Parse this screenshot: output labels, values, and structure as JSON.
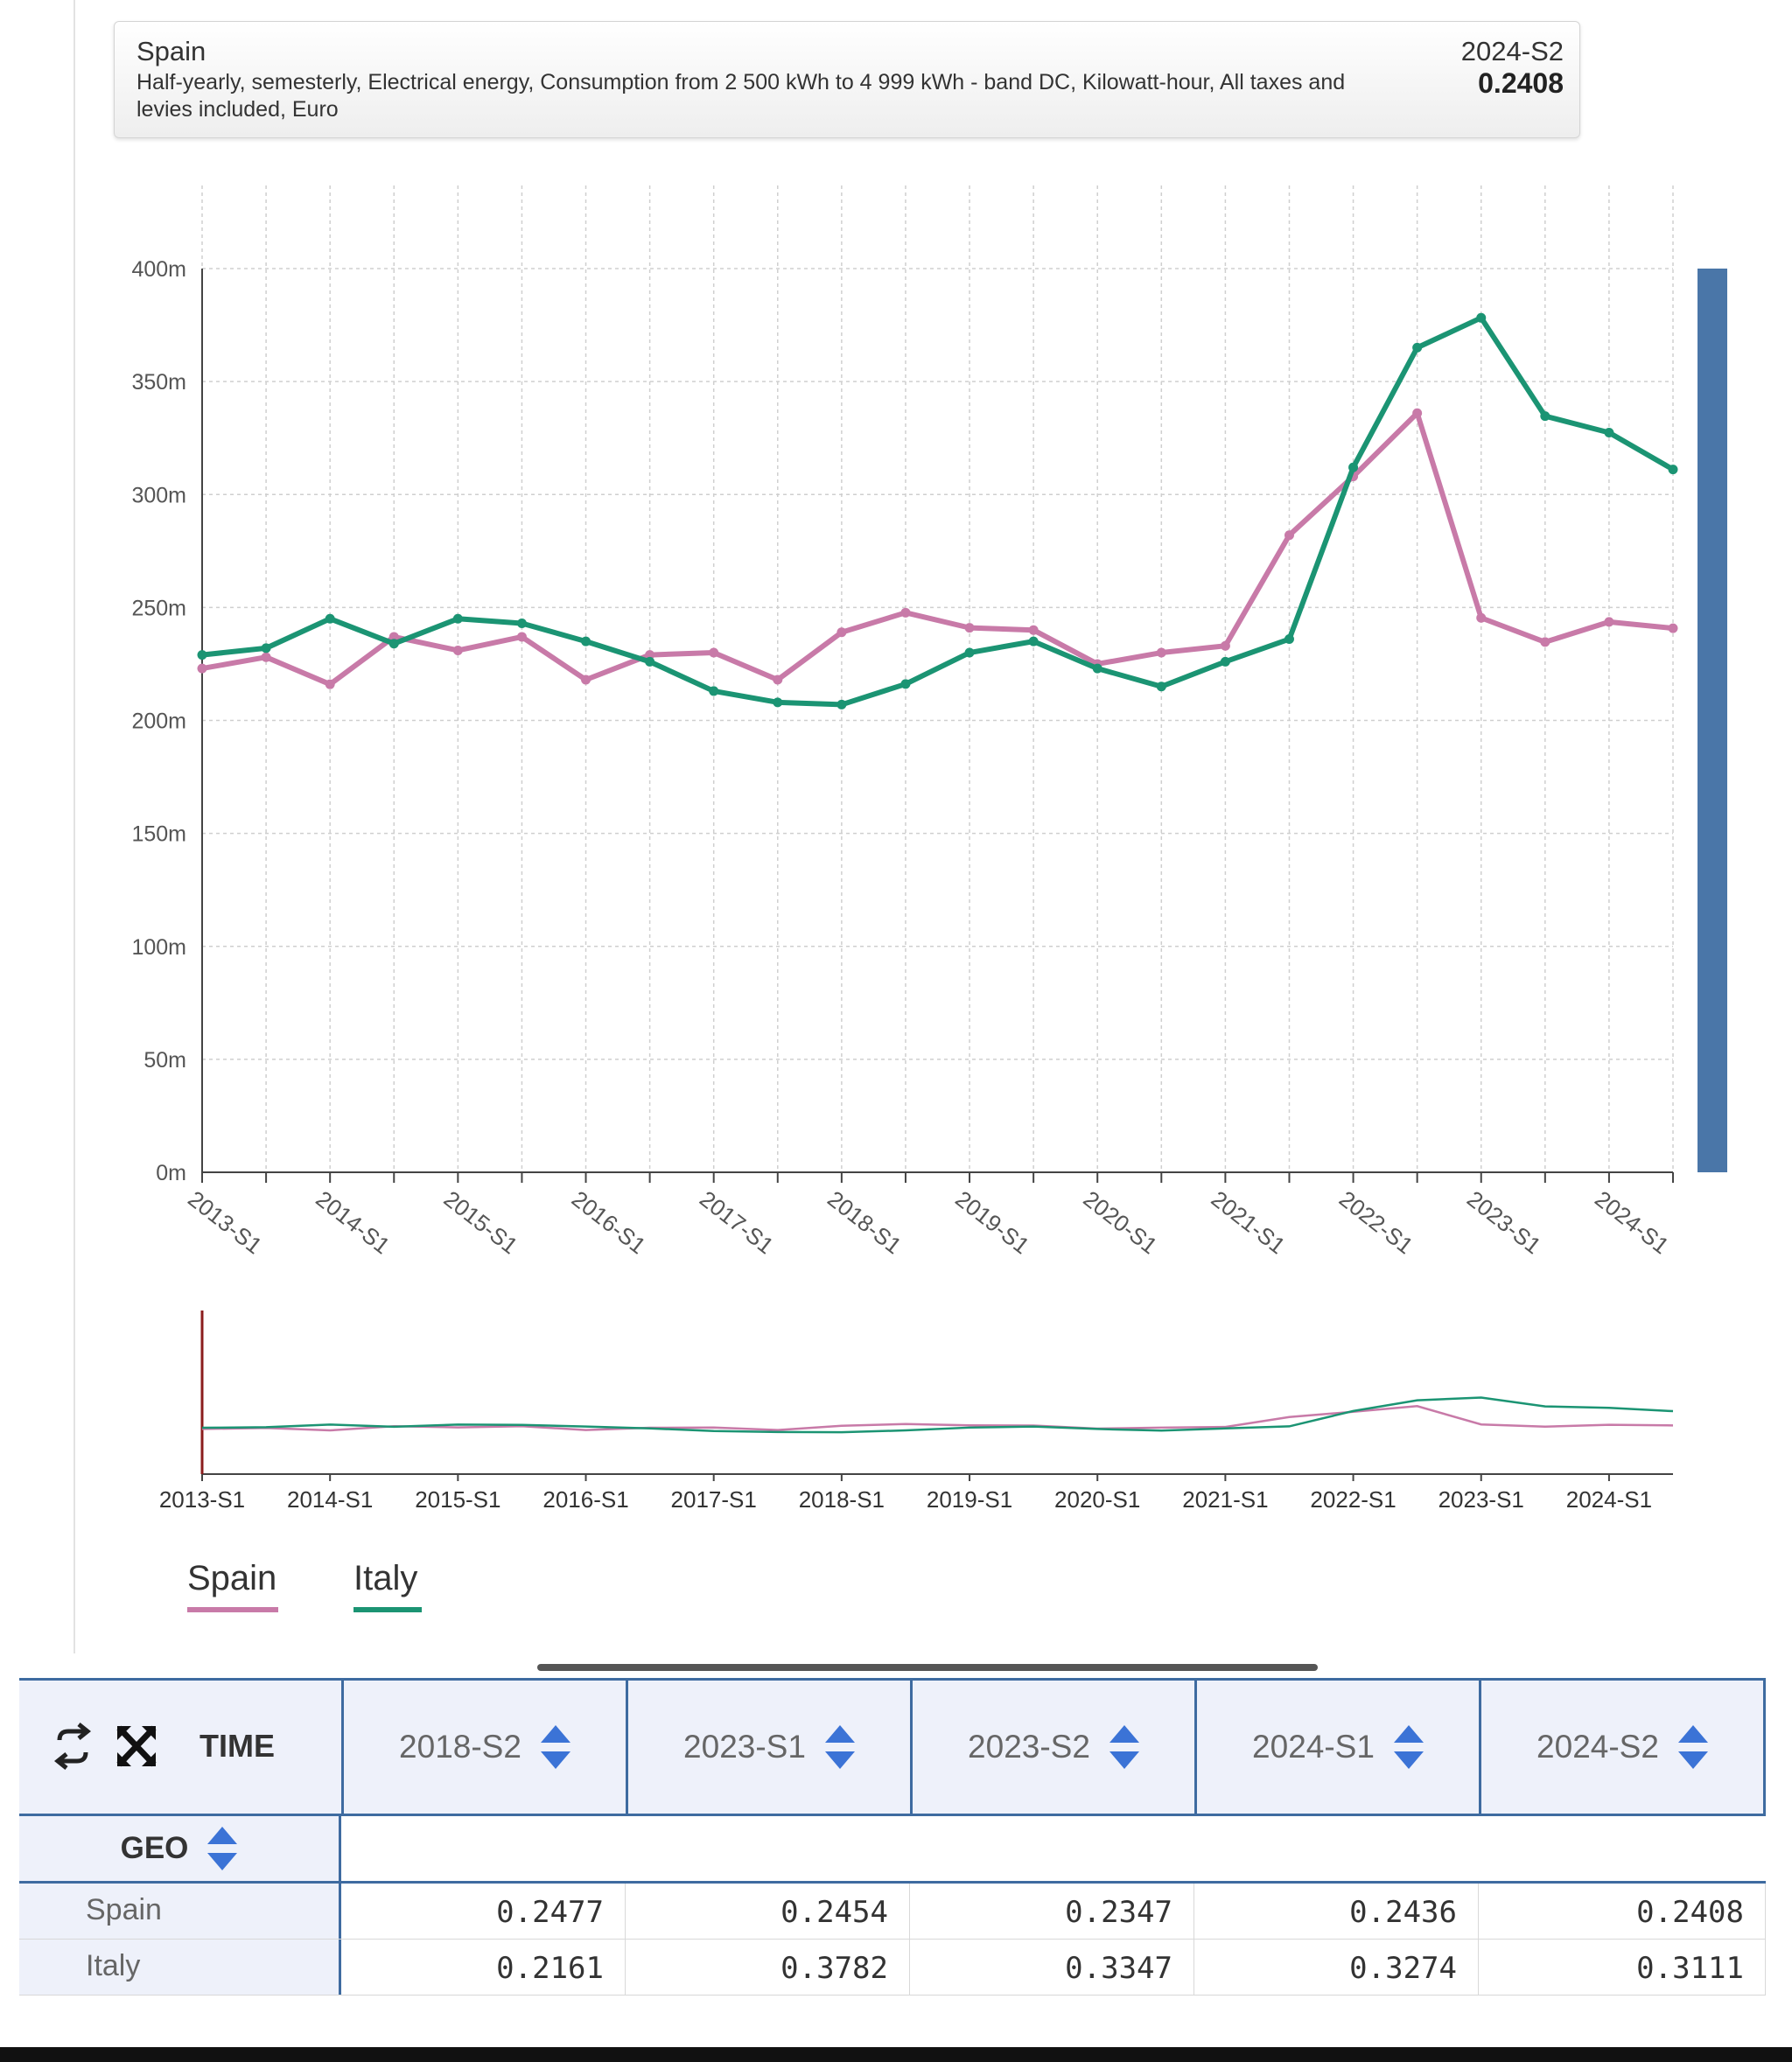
{
  "tooltip": {
    "geo": "Spain",
    "description": "Half-yearly, semesterly, Electrical energy, Consumption from 2 500 kWh to 4 999 kWh - band DC, Kilowatt-hour, All taxes and levies included, Euro",
    "time": "2024-S2",
    "value": "0.2408"
  },
  "chart_data": {
    "type": "line",
    "x": [
      "2013-S1",
      "2013-S2",
      "2014-S1",
      "2014-S2",
      "2015-S1",
      "2015-S2",
      "2016-S1",
      "2016-S2",
      "2017-S1",
      "2017-S2",
      "2018-S1",
      "2018-S2",
      "2019-S1",
      "2019-S2",
      "2020-S1",
      "2020-S2",
      "2021-S1",
      "2021-S2",
      "2022-S1",
      "2022-S2",
      "2023-S1",
      "2023-S2",
      "2024-S1",
      "2024-S2"
    ],
    "x_tick_labels": [
      "2013-S1",
      "2014-S1",
      "2015-S1",
      "2016-S1",
      "2017-S1",
      "2018-S1",
      "2019-S1",
      "2020-S1",
      "2021-S1",
      "2022-S1",
      "2023-S1",
      "2024-S1"
    ],
    "y_tick_labels": [
      "0m",
      "50m",
      "100m",
      "150m",
      "200m",
      "250m",
      "300m",
      "350m",
      "400m"
    ],
    "ylim": [
      0,
      0.4
    ],
    "grid": true,
    "series": [
      {
        "name": "Spain",
        "color": "#c87aa8",
        "values": [
          0.223,
          0.228,
          0.216,
          0.237,
          0.231,
          0.237,
          0.218,
          0.229,
          0.23,
          0.218,
          0.239,
          0.2477,
          0.241,
          0.24,
          0.225,
          0.23,
          0.233,
          0.282,
          0.308,
          0.336,
          0.2454,
          0.2347,
          0.2436,
          0.2408
        ]
      },
      {
        "name": "Italy",
        "color": "#1b9473",
        "values": [
          0.229,
          0.232,
          0.245,
          0.234,
          0.245,
          0.243,
          0.235,
          0.226,
          0.213,
          0.208,
          0.207,
          0.2161,
          0.23,
          0.235,
          0.223,
          0.215,
          0.226,
          0.236,
          0.312,
          0.365,
          0.3782,
          0.3347,
          0.3274,
          0.3111
        ]
      }
    ],
    "range_bar_color": "#4a76a8"
  },
  "legend": {
    "items": [
      {
        "label": "Spain",
        "color": "#c87aa8"
      },
      {
        "label": "Italy",
        "color": "#1b9473"
      }
    ]
  },
  "table": {
    "time_label": "TIME",
    "geo_label": "GEO",
    "columns": [
      "2018-S2",
      "2023-S1",
      "2023-S2",
      "2024-S1",
      "2024-S2"
    ],
    "rows": [
      {
        "geo": "Spain",
        "values": [
          "0.2477",
          "0.2454",
          "0.2347",
          "0.2436",
          "0.2408"
        ]
      },
      {
        "geo": "Italy",
        "values": [
          "0.2161",
          "0.3782",
          "0.3347",
          "0.3274",
          "0.3111"
        ]
      }
    ]
  }
}
